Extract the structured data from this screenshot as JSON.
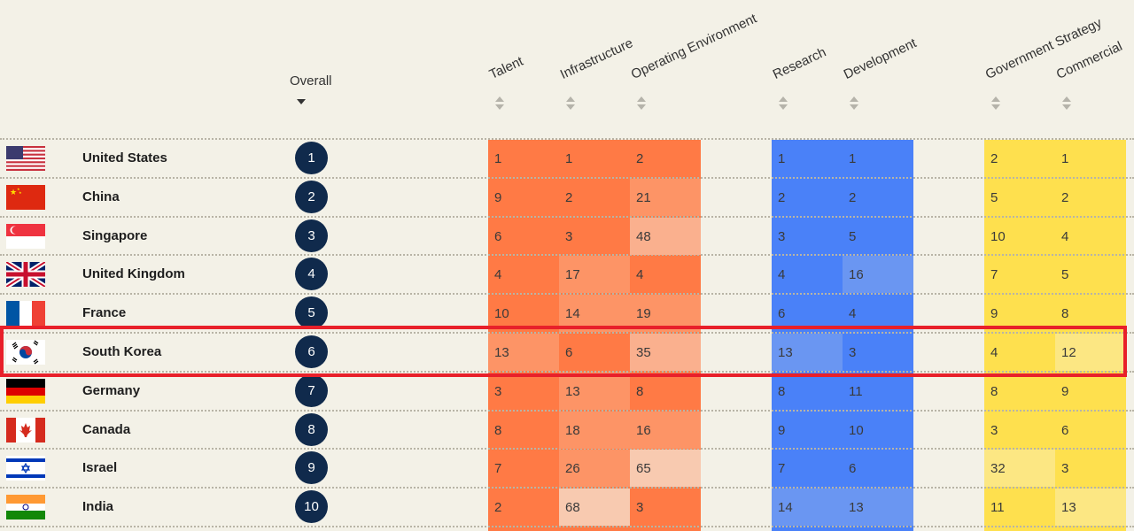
{
  "headers": {
    "overall": "Overall",
    "talent": "Talent",
    "infrastructure": "Infrastructure",
    "operating_environment": "Operating Environment",
    "research": "Research",
    "development": "Development",
    "government_strategy": "Government Strategy",
    "commercial": "Commercial"
  },
  "colors": {
    "implementation_dark": "#ff7a45",
    "implementation_mid": "#fd9466",
    "implementation_light": "#fab08e",
    "implementation_pale": "#f8cab0",
    "innovation_dark": "#4a81f8",
    "innovation_mid": "#6a96f2",
    "investment_dark": "#fee04e",
    "investment_light": "#fce783",
    "rank_circle": "#102a4c",
    "highlight": "#e8202a"
  },
  "rows": [
    {
      "country": "United States",
      "flag": "us-flag-icon",
      "rank": "1",
      "talent": "1",
      "infrastructure": "1",
      "operating_environment": "2",
      "research": "1",
      "development": "1",
      "government_strategy": "2",
      "commercial": "1"
    },
    {
      "country": "China",
      "flag": "china-flag-icon",
      "rank": "2",
      "talent": "9",
      "infrastructure": "2",
      "operating_environment": "21",
      "research": "2",
      "development": "2",
      "government_strategy": "5",
      "commercial": "2"
    },
    {
      "country": "Singapore",
      "flag": "singapore-flag-icon",
      "rank": "3",
      "talent": "6",
      "infrastructure": "3",
      "operating_environment": "48",
      "research": "3",
      "development": "5",
      "government_strategy": "10",
      "commercial": "4"
    },
    {
      "country": "United Kingdom",
      "flag": "uk-flag-icon",
      "rank": "4",
      "talent": "4",
      "infrastructure": "17",
      "operating_environment": "4",
      "research": "4",
      "development": "16",
      "government_strategy": "7",
      "commercial": "5"
    },
    {
      "country": "France",
      "flag": "france-flag-icon",
      "rank": "5",
      "talent": "10",
      "infrastructure": "14",
      "operating_environment": "19",
      "research": "6",
      "development": "4",
      "government_strategy": "9",
      "commercial": "8"
    },
    {
      "country": "South Korea",
      "flag": "south-korea-flag-icon",
      "rank": "6",
      "talent": "13",
      "infrastructure": "6",
      "operating_environment": "35",
      "research": "13",
      "development": "3",
      "government_strategy": "4",
      "commercial": "12"
    },
    {
      "country": "Germany",
      "flag": "germany-flag-icon",
      "rank": "7",
      "talent": "3",
      "infrastructure": "13",
      "operating_environment": "8",
      "research": "8",
      "development": "11",
      "government_strategy": "8",
      "commercial": "9"
    },
    {
      "country": "Canada",
      "flag": "canada-flag-icon",
      "rank": "8",
      "talent": "8",
      "infrastructure": "18",
      "operating_environment": "16",
      "research": "9",
      "development": "10",
      "government_strategy": "3",
      "commercial": "6"
    },
    {
      "country": "Israel",
      "flag": "israel-flag-icon",
      "rank": "9",
      "talent": "7",
      "infrastructure": "26",
      "operating_environment": "65",
      "research": "7",
      "development": "6",
      "government_strategy": "32",
      "commercial": "3"
    },
    {
      "country": "India",
      "flag": "india-flag-icon",
      "rank": "10",
      "talent": "2",
      "infrastructure": "68",
      "operating_environment": "3",
      "research": "14",
      "development": "13",
      "government_strategy": "11",
      "commercial": "13"
    }
  ]
}
